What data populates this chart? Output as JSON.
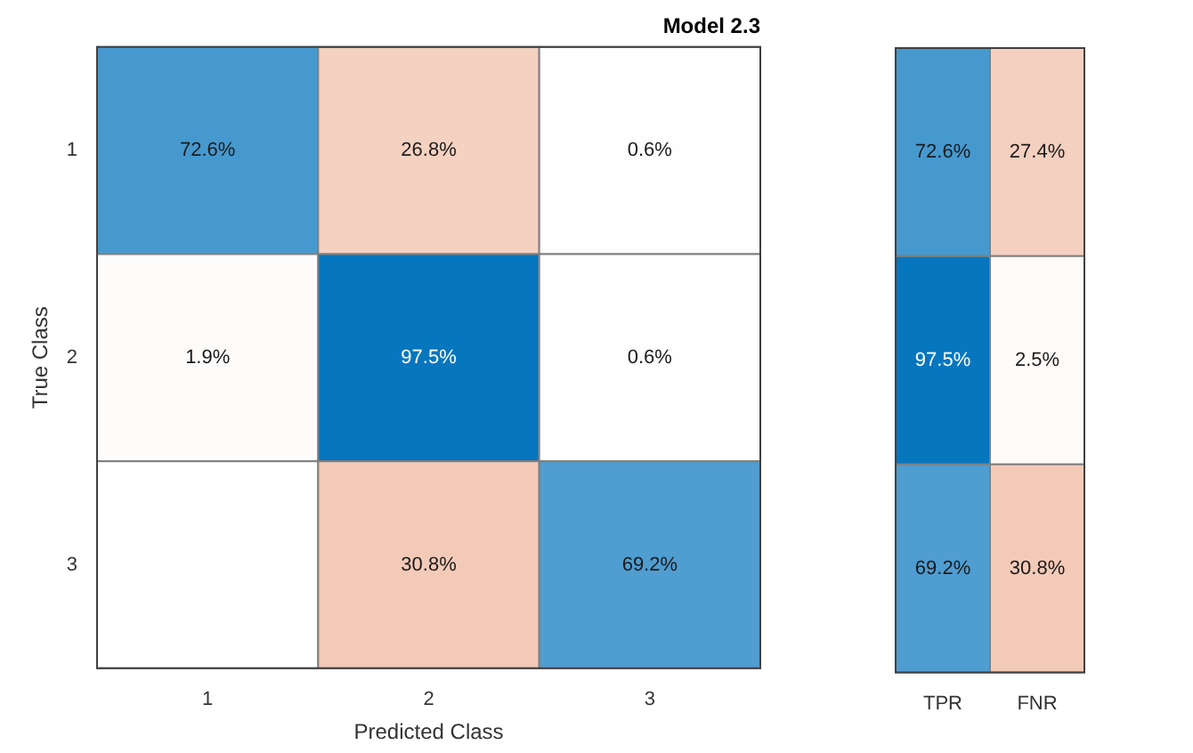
{
  "chart_data": [
    {
      "type": "heatmap",
      "title": "Model 2.3",
      "xlabel": "Predicted Class",
      "ylabel": "True Class",
      "categories": [
        "1",
        "2",
        "3"
      ],
      "y_categories": [
        "1",
        "2",
        "3"
      ],
      "cells": [
        [
          72.6,
          26.8,
          0.6
        ],
        [
          1.9,
          97.5,
          0.6
        ],
        [
          null,
          30.8,
          69.2
        ]
      ],
      "cell_labels": [
        [
          "72.6%",
          "26.8%",
          "0.6%"
        ],
        [
          "1.9%",
          "97.5%",
          "0.6%"
        ],
        [
          null,
          "30.8%",
          "69.2%"
        ]
      ]
    },
    {
      "type": "heatmap",
      "categories": [
        "TPR",
        "FNR"
      ],
      "y_categories": [
        "1",
        "2",
        "3"
      ],
      "tick_labels": "x",
      "cells": [
        [
          72.6,
          27.4
        ],
        [
          97.5,
          2.5
        ],
        [
          69.2,
          30.8
        ]
      ],
      "cell_labels": [
        [
          "72.6%",
          "27.4%"
        ],
        [
          "97.5%",
          "2.5%"
        ],
        [
          "69.2%",
          "30.8%"
        ]
      ]
    }
  ]
}
